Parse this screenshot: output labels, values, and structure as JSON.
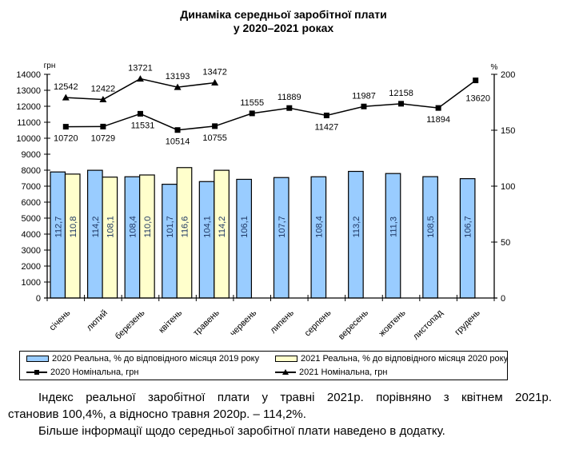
{
  "chart_data": {
    "type": "bar+line",
    "title_line1": "Динаміка середньої заробітної плати",
    "title_line2": "у 2020–2021 роках",
    "categories": [
      "січень",
      "лютий",
      "березень",
      "квітень",
      "травень",
      "червень",
      "липень",
      "серпень",
      "вересень",
      "жовтень",
      "листопад",
      "грудень"
    ],
    "left_axis": {
      "label": "грн",
      "min": 0,
      "max": 14000,
      "step": 1000,
      "ticks": [
        "0",
        "1000",
        "2000",
        "3000",
        "4000",
        "5000",
        "6000",
        "7000",
        "8000",
        "9000",
        "10000",
        "11000",
        "12000",
        "13000",
        "14000"
      ]
    },
    "right_axis": {
      "label": "%",
      "min": 0,
      "max": 200,
      "step": 50,
      "ticks": [
        "0",
        "50",
        "100",
        "150",
        "200"
      ]
    },
    "bar_series": [
      {
        "name": "2020 Реальна, % до відповідного місяця 2019 року",
        "axis": "right",
        "color": "#99CCFF",
        "values": [
          112.7,
          114.2,
          108.4,
          101.7,
          104.1,
          106.1,
          107.7,
          108.4,
          113.2,
          111.3,
          108.5,
          106.7
        ],
        "labels": [
          "112,7",
          "114,2",
          "108,4",
          "101,7",
          "104,1",
          "106,1",
          "107,7",
          "108,4",
          "113,2",
          "111,3",
          "108,5",
          "106,7"
        ]
      },
      {
        "name": "2021 Реальна, % до відповідного місяця 2020 року",
        "axis": "right",
        "color": "#FFFFCC",
        "values": [
          110.8,
          108.1,
          110.0,
          116.6,
          114.2
        ],
        "labels": [
          "110,8",
          "108,1",
          "110,0",
          "116,6",
          "114,2"
        ]
      }
    ],
    "line_series": [
      {
        "name": "2020 Номінальна, грн",
        "axis": "left",
        "marker": "square",
        "values": [
          10720,
          10729,
          11531,
          10514,
          10755,
          11555,
          11889,
          11427,
          11987,
          12158,
          11894,
          13620
        ],
        "labels": [
          "10720",
          "10729",
          "11531",
          "10514",
          "10755",
          "11555",
          "11889",
          "11427",
          "11987",
          "12158",
          "11894",
          "13620"
        ]
      },
      {
        "name": "2021 Номінальна, грн",
        "axis": "left",
        "marker": "triangle",
        "values": [
          12542,
          12422,
          13721,
          13193,
          13472
        ],
        "labels": [
          "12542",
          "12422",
          "13721",
          "13193",
          "13472"
        ]
      }
    ],
    "grid": false,
    "legend_position": "bottom"
  },
  "text": {
    "para1_line1": "Індекс реальної заробітної плати у травні 2021р. порівняно з квітнем 2021р.",
    "para1_line2": "становив 100,4%, а відносно травня 2020р. – 114,2%.",
    "para2": "Більше інформації щодо середньої заробітної плати наведено в додатку."
  }
}
